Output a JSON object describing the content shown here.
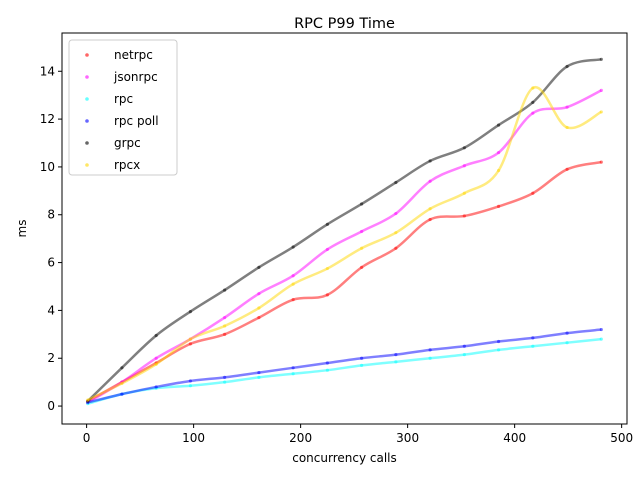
{
  "chart_data": {
    "type": "line",
    "title": "RPC P99 Time",
    "xlabel": "concurrency calls",
    "ylabel": "ms",
    "xlim": [
      -23,
      505
    ],
    "ylim": [
      -0.75,
      15.6
    ],
    "xticks": [
      0,
      100,
      200,
      300,
      400,
      500
    ],
    "yticks": [
      0,
      2,
      4,
      6,
      8,
      10,
      12,
      14
    ],
    "legend_position": "top-left",
    "grid": false,
    "x": [
      1,
      33,
      65,
      97,
      129,
      161,
      193,
      225,
      257,
      289,
      321,
      353,
      385,
      417,
      449,
      481
    ],
    "series": [
      {
        "name": "netrpc",
        "color": "#ff0000",
        "values": [
          0.2,
          1.0,
          1.8,
          2.6,
          3.0,
          3.7,
          4.45,
          4.65,
          5.8,
          6.6,
          7.8,
          7.95,
          8.35,
          8.9,
          9.9,
          10.2
        ]
      },
      {
        "name": "jsonrpc",
        "color": "#ff00ff",
        "values": [
          0.15,
          1.0,
          2.0,
          2.8,
          3.7,
          4.7,
          5.45,
          6.55,
          7.3,
          8.05,
          9.4,
          10.05,
          10.6,
          12.25,
          12.5,
          13.2
        ]
      },
      {
        "name": "rpc",
        "color": "#00ffff",
        "values": [
          0.1,
          0.5,
          0.75,
          0.85,
          1.0,
          1.2,
          1.35,
          1.5,
          1.7,
          1.85,
          2.0,
          2.15,
          2.35,
          2.5,
          2.65,
          2.8
        ]
      },
      {
        "name": "rpc poll",
        "color": "#0000ff",
        "values": [
          0.15,
          0.5,
          0.8,
          1.05,
          1.2,
          1.4,
          1.6,
          1.8,
          2.0,
          2.15,
          2.35,
          2.5,
          2.7,
          2.85,
          3.05,
          3.2
        ]
      },
      {
        "name": "grpc",
        "color": "#000000",
        "values": [
          0.2,
          1.6,
          2.95,
          3.95,
          4.85,
          5.8,
          6.65,
          7.6,
          8.45,
          9.35,
          10.25,
          10.8,
          11.75,
          12.7,
          14.2,
          14.5
        ]
      },
      {
        "name": "rpcx",
        "color": "#ffd700",
        "values": [
          0.25,
          0.95,
          1.75,
          2.8,
          3.35,
          4.1,
          5.1,
          5.75,
          6.6,
          7.25,
          8.25,
          8.9,
          9.85,
          13.3,
          11.65,
          12.3
        ]
      }
    ]
  }
}
